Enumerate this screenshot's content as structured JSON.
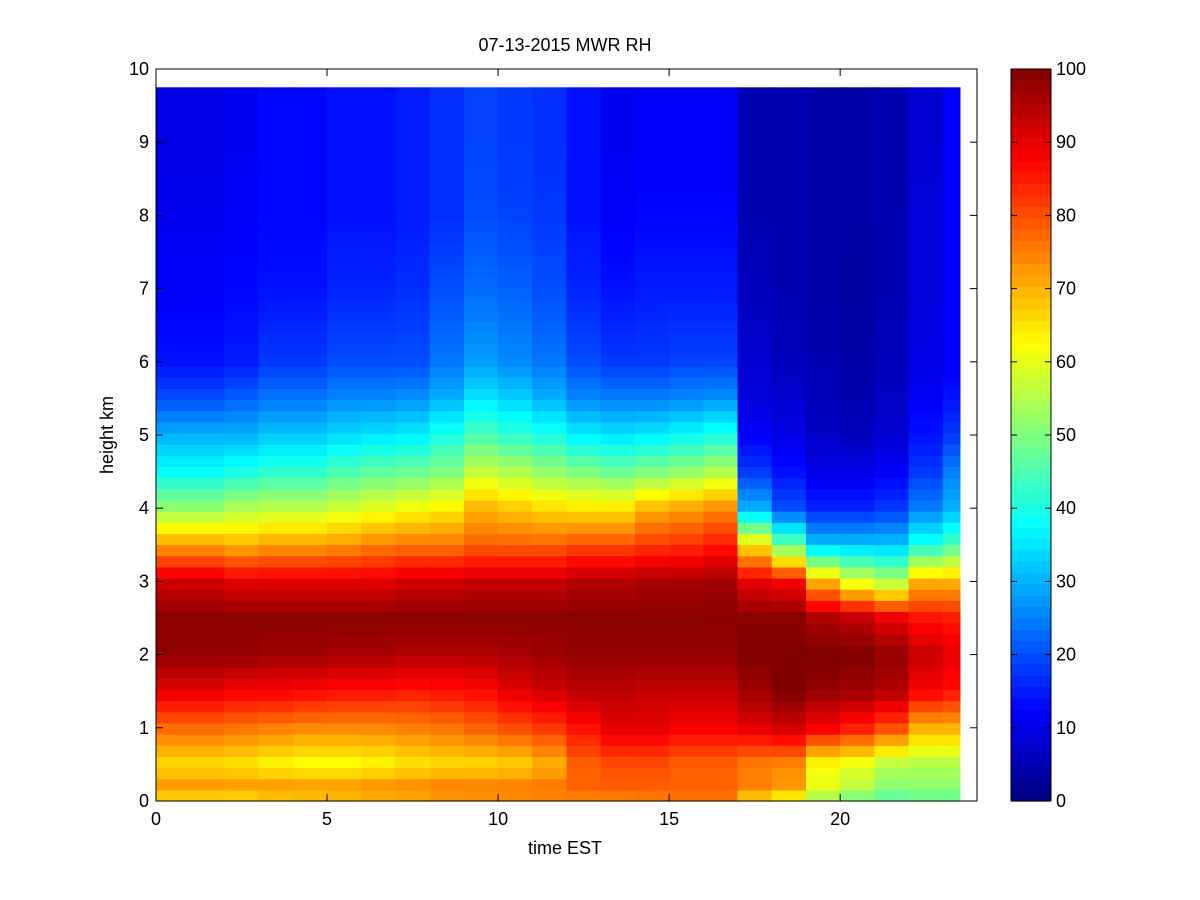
{
  "chart_data": {
    "type": "heatmap",
    "title": "07-13-2015 MWR RH",
    "xlabel": "time EST",
    "ylabel": "height km",
    "xlim": [
      0,
      24
    ],
    "ylim": [
      0,
      10
    ],
    "xticks": [
      0,
      5,
      10,
      15,
      20
    ],
    "yticks": [
      0,
      1,
      2,
      3,
      4,
      5,
      6,
      7,
      8,
      9,
      10
    ],
    "colorbar": {
      "colormap": "jet",
      "range": [
        0,
        100
      ],
      "ticks": [
        0,
        10,
        20,
        30,
        40,
        50,
        60,
        70,
        80,
        90,
        100
      ]
    },
    "grid": false,
    "x_bins_hours": [
      0,
      1,
      2,
      3,
      4,
      5,
      6,
      7,
      8,
      9,
      10,
      11,
      12,
      13,
      14,
      15,
      16,
      17,
      18,
      19,
      20,
      21,
      22,
      23
    ],
    "x_bin_width_hours": 1,
    "y_top_km": 9.75,
    "profile_anchor_heights_km": [
      0,
      0.1,
      0.5,
      1.0,
      1.5,
      2.0,
      2.5,
      3.0,
      3.5,
      4.0,
      4.5,
      5.0,
      5.5,
      6.0,
      7.0,
      8.0,
      9.0,
      9.75
    ],
    "rh_percent_profiles": [
      [
        45,
        75,
        66,
        77,
        90,
        98,
        99,
        92,
        72,
        52,
        38,
        30,
        20,
        14,
        12,
        11,
        10,
        10
      ],
      [
        45,
        75,
        66,
        77,
        90,
        98,
        99,
        92,
        72,
        52,
        38,
        30,
        20,
        14,
        12,
        11,
        10,
        10
      ],
      [
        45,
        75,
        65,
        76,
        88,
        98,
        99,
        90,
        70,
        55,
        40,
        30,
        22,
        15,
        13,
        12,
        11,
        11
      ],
      [
        47,
        76,
        63,
        75,
        88,
        97,
        99,
        90,
        72,
        56,
        42,
        32,
        24,
        18,
        14,
        13,
        13,
        13
      ],
      [
        48,
        76,
        62,
        74,
        87,
        97,
        99,
        90,
        72,
        56,
        42,
        32,
        24,
        18,
        14,
        13,
        13,
        13
      ],
      [
        50,
        76,
        62,
        74,
        86,
        96,
        99,
        90,
        73,
        58,
        45,
        34,
        26,
        20,
        16,
        14,
        14,
        14
      ],
      [
        52,
        77,
        63,
        74,
        86,
        96,
        99,
        90,
        75,
        60,
        47,
        35,
        26,
        20,
        16,
        14,
        14,
        14
      ],
      [
        55,
        77,
        65,
        75,
        85,
        95,
        99,
        92,
        76,
        62,
        48,
        36,
        27,
        20,
        17,
        15,
        15,
        15
      ],
      [
        58,
        78,
        66,
        76,
        86,
        95,
        99,
        92,
        76,
        64,
        50,
        40,
        30,
        24,
        20,
        17,
        17,
        17
      ],
      [
        60,
        78,
        66,
        78,
        87,
        95,
        99,
        93,
        78,
        70,
        57,
        45,
        35,
        28,
        23,
        20,
        19,
        19
      ],
      [
        62,
        78,
        67,
        80,
        90,
        96,
        99,
        93,
        78,
        68,
        55,
        42,
        33,
        26,
        22,
        19,
        18,
        18
      ],
      [
        64,
        78,
        70,
        82,
        92,
        97,
        99,
        93,
        78,
        66,
        52,
        40,
        30,
        24,
        20,
        18,
        17,
        17
      ],
      [
        66,
        78,
        78,
        86,
        94,
        98,
        99,
        95,
        80,
        65,
        50,
        36,
        26,
        20,
        16,
        14,
        14,
        14
      ],
      [
        68,
        78,
        80,
        90,
        94,
        98,
        99,
        95,
        80,
        65,
        48,
        35,
        25,
        18,
        14,
        12,
        11,
        11
      ],
      [
        70,
        78,
        80,
        90,
        93,
        98,
        99,
        96,
        82,
        70,
        50,
        36,
        25,
        18,
        15,
        13,
        12,
        12
      ],
      [
        72,
        78,
        78,
        88,
        93,
        98,
        99,
        96,
        83,
        72,
        52,
        38,
        26,
        19,
        15,
        13,
        12,
        12
      ],
      [
        72,
        78,
        78,
        88,
        93,
        98,
        99,
        97,
        85,
        74,
        55,
        40,
        27,
        19,
        15,
        13,
        12,
        12
      ],
      [
        50,
        75,
        75,
        90,
        97,
        100,
        99,
        90,
        65,
        30,
        18,
        12,
        9,
        8,
        6,
        5,
        5,
        5
      ],
      [
        42,
        72,
        74,
        92,
        100,
        100,
        99,
        88,
        48,
        20,
        14,
        10,
        8,
        6,
        5,
        5,
        5,
        5
      ],
      [
        40,
        60,
        62,
        88,
        98,
        100,
        96,
        70,
        32,
        16,
        10,
        7,
        6,
        5,
        4,
        4,
        4,
        4
      ],
      [
        38,
        55,
        60,
        85,
        97,
        100,
        94,
        60,
        32,
        16,
        10,
        6,
        5,
        4,
        3,
        4,
        4,
        4
      ],
      [
        40,
        50,
        55,
        80,
        95,
        98,
        90,
        55,
        32,
        18,
        12,
        8,
        7,
        6,
        5,
        5,
        5,
        5
      ],
      [
        45,
        50,
        55,
        70,
        88,
        93,
        86,
        70,
        40,
        25,
        18,
        14,
        12,
        10,
        9,
        9,
        8,
        8
      ],
      [
        45,
        50,
        55,
        70,
        86,
        90,
        85,
        70,
        45,
        30,
        25,
        18,
        14,
        12,
        12,
        12,
        12,
        12
      ]
    ]
  }
}
